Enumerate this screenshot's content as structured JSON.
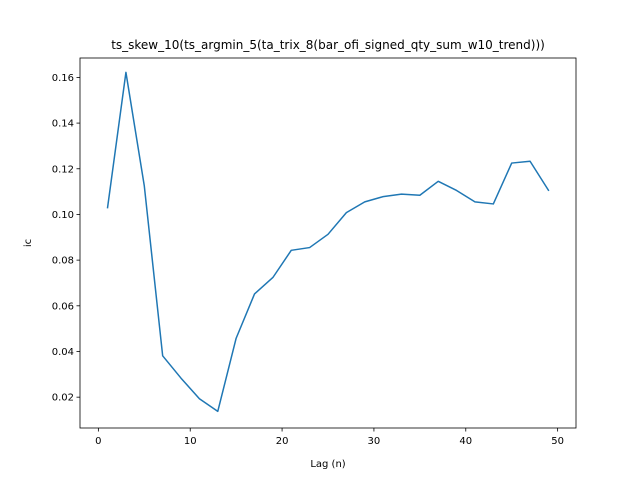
{
  "chart_data": {
    "type": "line",
    "title": "ts_skew_10(ts_argmin_5(ta_trix_8(bar_ofi_signed_qty_sum_w10_trend)))",
    "xlabel": "Lag (n)",
    "ylabel": "ic",
    "xlim": [
      -2,
      52
    ],
    "ylim": [
      0.0065,
      0.1685
    ],
    "grid": false,
    "line_color": "#1f77b4",
    "x_ticks": [
      0,
      10,
      20,
      30,
      40,
      50
    ],
    "x_tick_labels": [
      "0",
      "10",
      "20",
      "30",
      "40",
      "50"
    ],
    "y_ticks": [
      0.02,
      0.04,
      0.06,
      0.08,
      0.1,
      0.12,
      0.14,
      0.16
    ],
    "y_tick_labels": [
      "0.02",
      "0.04",
      "0.06",
      "0.08",
      "0.10",
      "0.12",
      "0.14",
      "0.16"
    ],
    "series": [
      {
        "x": [
          1,
          3,
          5,
          7,
          9,
          11,
          13,
          15,
          17,
          19,
          21,
          23,
          25,
          27,
          29,
          31,
          33,
          35,
          37,
          39,
          41,
          43,
          45,
          47,
          49
        ],
        "values": [
          0.103,
          0.1622,
          0.1125,
          0.0381,
          0.0283,
          0.0193,
          0.0138,
          0.0458,
          0.0652,
          0.0724,
          0.0843,
          0.0855,
          0.0913,
          0.1008,
          0.1055,
          0.1078,
          0.1089,
          0.1084,
          0.1145,
          0.1105,
          0.1055,
          0.1046,
          0.1225,
          0.1233,
          0.1106
        ]
      }
    ]
  }
}
